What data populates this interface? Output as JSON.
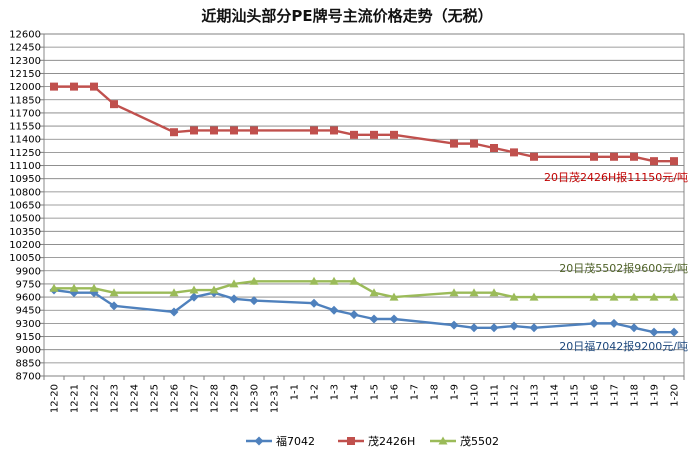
{
  "chart_data": {
    "type": "line",
    "title": "近期汕头部分PE牌号主流价格走势（无税）",
    "xlabel": "",
    "ylabel": "",
    "ylim": [
      8700,
      12600
    ],
    "yticks": [
      8700,
      8850,
      9000,
      9150,
      9300,
      9450,
      9600,
      9750,
      9900,
      10050,
      10200,
      10350,
      10500,
      10650,
      10800,
      10950,
      11100,
      11250,
      11400,
      11550,
      11700,
      11850,
      12000,
      12150,
      12300,
      12450,
      12600
    ],
    "grid": true,
    "legend_position": "bottom",
    "categories": [
      "12-20",
      "12-21",
      "12-22",
      "12-23",
      "12-24",
      "12-25",
      "12-26",
      "12-27",
      "12-28",
      "12-29",
      "12-30",
      "12-31",
      "1-1",
      "1-2",
      "1-3",
      "1-4",
      "1-5",
      "1-6",
      "1-7",
      "1-8",
      "1-9",
      "1-10",
      "1-11",
      "1-12",
      "1-13",
      "1-14",
      "1-15",
      "1-16",
      "1-17",
      "1-18",
      "1-19",
      "1-20"
    ],
    "series": [
      {
        "name": "福7042",
        "color": "#4f81bd",
        "marker": "diamond",
        "values": [
          9680,
          9650,
          9650,
          9500,
          null,
          null,
          9430,
          9600,
          9650,
          9580,
          9560,
          null,
          null,
          9530,
          9450,
          9400,
          9350,
          9350,
          null,
          null,
          9280,
          9250,
          9250,
          9270,
          9250,
          null,
          null,
          9300,
          9300,
          9250,
          9200,
          9200
        ]
      },
      {
        "name": "茂2426H",
        "color": "#c0504d",
        "marker": "square",
        "values": [
          12000,
          12000,
          12000,
          11800,
          null,
          null,
          11480,
          11500,
          11500,
          11500,
          11500,
          null,
          null,
          11500,
          11500,
          11450,
          11450,
          11450,
          null,
          null,
          11350,
          11350,
          11300,
          11250,
          11200,
          null,
          null,
          11200,
          11200,
          11200,
          11150,
          11150
        ]
      },
      {
        "name": "茂5502",
        "color": "#9bbb59",
        "marker": "triangle",
        "values": [
          9700,
          9700,
          9700,
          9650,
          null,
          null,
          9650,
          9680,
          9680,
          9750,
          9780,
          null,
          null,
          9780,
          9780,
          9780,
          9650,
          9600,
          null,
          null,
          9650,
          9650,
          9650,
          9600,
          9600,
          null,
          null,
          9600,
          9600,
          9600,
          9600,
          9600
        ]
      }
    ],
    "annotations": [
      {
        "text": "20日茂2426H报11150元/吨",
        "color": "#c00000",
        "series": "茂2426H"
      },
      {
        "text": "20日茂5502报9600元/吨",
        "color": "#4f6228",
        "series": "茂5502"
      },
      {
        "text": "20日福7042报9200元/吨",
        "color": "#1f497d",
        "series": "福7042"
      }
    ]
  }
}
